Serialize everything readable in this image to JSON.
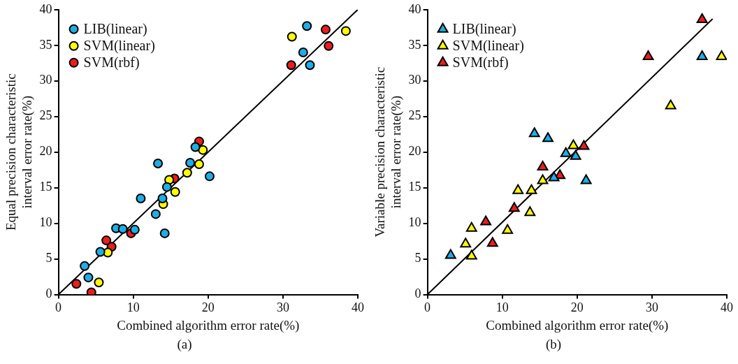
{
  "chart_data": [
    {
      "type": "scatter",
      "xlabel": "Combined algorithm error rate(%)",
      "ylabel": "Equal precision characteristic interval error rate(%)",
      "annotations": [
        "(a)"
      ],
      "marker": "circle",
      "legend": "top left",
      "xlim": [
        0,
        40
      ],
      "ylim": [
        0,
        40
      ],
      "xticks": [
        0,
        10,
        20,
        30,
        40
      ],
      "yticks": [
        0,
        5,
        10,
        15,
        20,
        25,
        30,
        35,
        40
      ],
      "series": [
        {
          "name": "LIB(linear)",
          "color": "#1eaee6",
          "x": [
            3.5,
            4.0,
            5.6,
            7.7,
            8.6,
            10.2,
            11.0,
            13.0,
            13.3,
            13.9,
            14.2,
            14.5,
            17.6,
            18.3,
            20.2,
            33.2,
            32.7,
            33.6
          ],
          "values": [
            4.0,
            2.4,
            6.0,
            9.3,
            9.2,
            9.1,
            13.5,
            11.3,
            18.4,
            13.5,
            8.6,
            15.1,
            18.5,
            20.7,
            16.6,
            37.7,
            34.0,
            32.2
          ]
        },
        {
          "name": "SVM(linear)",
          "color": "#ffff00",
          "x": [
            5.4,
            6.6,
            14.0,
            14.8,
            15.6,
            17.2,
            18.8,
            19.3,
            31.2,
            38.4
          ],
          "values": [
            1.7,
            5.9,
            12.7,
            16.1,
            14.4,
            17.1,
            18.3,
            20.3,
            36.2,
            37.0
          ]
        },
        {
          "name": "SVM(rbf)",
          "color": "#ee1c1c",
          "x": [
            2.4,
            4.4,
            6.4,
            7.1,
            9.7,
            15.5,
            18.8,
            35.7,
            36.1,
            31.1
          ],
          "values": [
            1.5,
            0.3,
            7.6,
            6.7,
            8.6,
            16.3,
            21.5,
            37.2,
            34.9,
            32.2
          ]
        },
        {
          "type": "line",
          "marker": "none",
          "color": "#000000",
          "x": [
            0,
            40
          ],
          "values": [
            0,
            40
          ]
        }
      ]
    },
    {
      "type": "scatter",
      "xlabel": "Combined algorithm error rate(%)",
      "ylabel": "Variable precision characteristic interval error rate(%)",
      "annotations": [
        "(b)"
      ],
      "marker": "triangle",
      "legend": "top left",
      "xlim": [
        0,
        40
      ],
      "ylim": [
        0,
        40
      ],
      "xticks": [
        0,
        10,
        20,
        30,
        40
      ],
      "yticks": [
        0,
        5,
        10,
        15,
        20,
        25,
        30,
        35,
        40
      ],
      "series": [
        {
          "name": "LIB(linear)",
          "color": "#1eaee6",
          "x": [
            3.1,
            18.5,
            19.8,
            16.9,
            21.2,
            14.3,
            16.1,
            36.7
          ],
          "values": [
            5.5,
            19.8,
            19.4,
            16.4,
            16.0,
            22.6,
            21.9,
            33.4
          ]
        },
        {
          "name": "SVM(linear)",
          "color": "#ffff00",
          "x": [
            5.1,
            5.9,
            5.9,
            10.7,
            12.1,
            13.9,
            13.7,
            15.4,
            19.5,
            32.5,
            39.3
          ],
          "values": [
            7.1,
            9.3,
            5.4,
            9.0,
            14.6,
            14.6,
            11.5,
            16.0,
            20.9,
            26.5,
            33.4
          ]
        },
        {
          "name": "SVM(rbf)",
          "color": "#ee1c1c",
          "x": [
            7.8,
            8.7,
            11.6,
            15.4,
            17.7,
            20.9,
            29.5,
            36.7
          ],
          "values": [
            10.2,
            7.2,
            12.1,
            17.9,
            16.7,
            20.8,
            33.4,
            38.6
          ]
        },
        {
          "type": "line",
          "marker": "none",
          "color": "#000000",
          "x": [
            0,
            38.1
          ],
          "values": [
            0,
            38.7
          ]
        }
      ]
    }
  ]
}
